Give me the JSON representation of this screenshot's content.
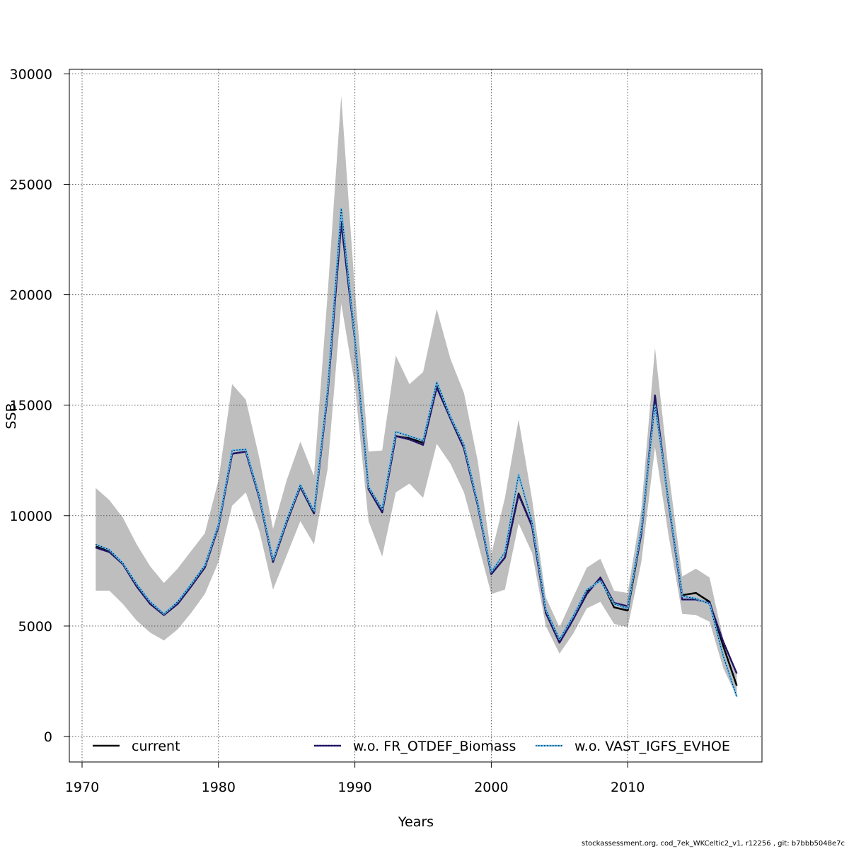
{
  "chart_data": {
    "type": "line",
    "title": "",
    "xlabel": "Years",
    "ylabel": "SSB",
    "xlim": [
      1970,
      2019
    ],
    "ylim": [
      0,
      30000
    ],
    "xticks": [
      1970,
      1980,
      1990,
      2000,
      2010
    ],
    "yticks": [
      0,
      5000,
      10000,
      15000,
      20000,
      25000,
      30000
    ],
    "grid": true,
    "legend_position": "bottom",
    "x": [
      1971,
      1972,
      1973,
      1974,
      1975,
      1976,
      1977,
      1978,
      1979,
      1980,
      1981,
      1982,
      1983,
      1984,
      1985,
      1986,
      1987,
      1988,
      1989,
      1990,
      1991,
      1992,
      1993,
      1994,
      1995,
      1996,
      1997,
      1998,
      1999,
      2000,
      2001,
      2002,
      2003,
      2004,
      2005,
      2006,
      2007,
      2008,
      2009,
      2010,
      2011,
      2012,
      2013,
      2014,
      2015,
      2016,
      2017,
      2018
    ],
    "confidence_band": {
      "color": "#bebebe",
      "upper": [
        11250,
        10700,
        9900,
        8700,
        7700,
        6950,
        7600,
        8400,
        9200,
        11600,
        15950,
        15250,
        12600,
        9400,
        11600,
        13350,
        11800,
        20000,
        29000,
        20200,
        12900,
        12950,
        17250,
        15950,
        16500,
        19350,
        17100,
        15550,
        12500,
        8250,
        10800,
        14350,
        10700,
        6300,
        4950,
        6300,
        7650,
        8050,
        6600,
        6500,
        10300,
        17600,
        12000,
        7250,
        7600,
        7200,
        4400,
        2900
      ],
      "lower": [
        6600,
        6600,
        6000,
        5250,
        4700,
        4350,
        4850,
        5600,
        6450,
        7900,
        10450,
        11050,
        9300,
        6650,
        8200,
        9750,
        8700,
        12100,
        19600,
        15900,
        9750,
        8150,
        11050,
        11450,
        10800,
        13250,
        12350,
        11050,
        8800,
        6450,
        6650,
        9650,
        8300,
        5000,
        3750,
        4650,
        5800,
        6100,
        5100,
        4950,
        7900,
        13100,
        9100,
        5550,
        5500,
        5200,
        3100,
        1800
      ]
    },
    "series": [
      {
        "name": "current",
        "color": "#000000",
        "values": [
          8600,
          8400,
          7800,
          6800,
          6000,
          5500,
          6000,
          6800,
          7650,
          9500,
          12800,
          12900,
          10800,
          7900,
          9700,
          11300,
          10100,
          15500,
          23300,
          18000,
          11200,
          10150,
          13600,
          13500,
          13300,
          15900,
          14400,
          13050,
          10500,
          7350,
          8100,
          11000,
          9500,
          5600,
          4250,
          5300,
          6550,
          7150,
          5850,
          5700,
          9200,
          15200,
          10600,
          6400,
          6500,
          6100,
          4100,
          2300
        ]
      },
      {
        "name": "w.o. FR_OTDEF_Biomass",
        "color": "#2b1d7e",
        "values": [
          8550,
          8350,
          7800,
          6800,
          6000,
          5500,
          6000,
          6800,
          7650,
          9500,
          12800,
          12900,
          10800,
          7900,
          9700,
          11300,
          10100,
          15500,
          23300,
          18000,
          11200,
          10150,
          13600,
          13450,
          13200,
          15800,
          14400,
          13050,
          10500,
          7350,
          8100,
          10950,
          9500,
          5600,
          4250,
          5300,
          6450,
          7200,
          6050,
          5900,
          9200,
          15450,
          10600,
          6200,
          6200,
          6050,
          4300,
          2850
        ]
      },
      {
        "name": "w.o. VAST_IGFS_EVHOE",
        "color": "#5bb8f0",
        "values": [
          8700,
          8450,
          7850,
          6900,
          6100,
          5550,
          6100,
          6900,
          7750,
          9600,
          12950,
          13000,
          10900,
          8000,
          9800,
          11400,
          10200,
          15700,
          23900,
          18100,
          11300,
          10300,
          13800,
          13600,
          13400,
          16050,
          14500,
          13200,
          10600,
          7450,
          8350,
          11850,
          9700,
          5750,
          4400,
          5450,
          6650,
          7050,
          6000,
          5800,
          9400,
          15000,
          10700,
          6350,
          6250,
          6000,
          3650,
          1800
        ]
      }
    ]
  },
  "legend": {
    "items": [
      {
        "label": "current",
        "color": "#000000",
        "style": "solid"
      },
      {
        "label": "w.o. FR_OTDEF_Biomass",
        "color": "#2b1d7e",
        "style": "dotted-over-solid"
      },
      {
        "label": "w.o. VAST_IGFS_EVHOE",
        "color": "#5bb8f0",
        "style": "dotted-over-solid"
      }
    ]
  },
  "footer": {
    "text": "stockassessment.org, cod_7ek_WKCeltic2_v1, r12256 , git: b7bbb5048e7c"
  }
}
